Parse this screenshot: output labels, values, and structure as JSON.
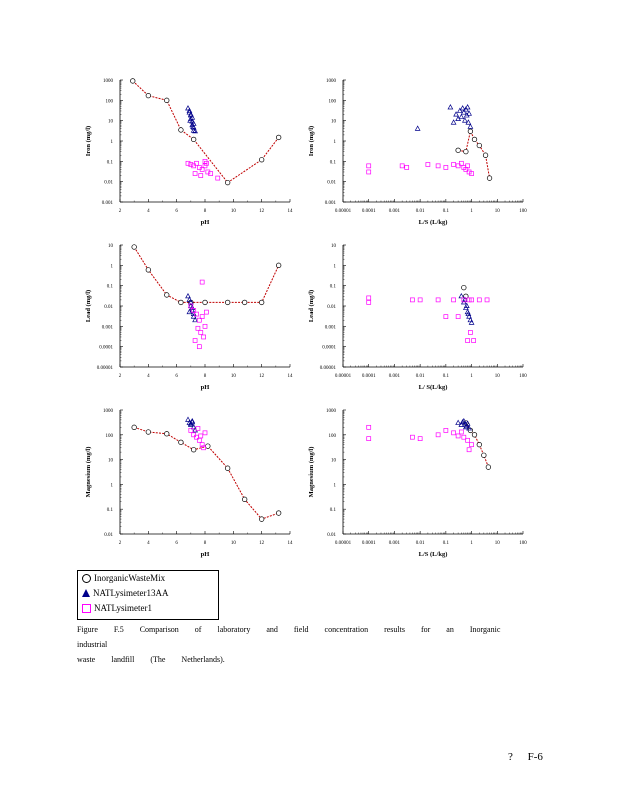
{
  "colors": {
    "lab": "#000000",
    "fit": "#c00000",
    "nat13aa": "#00008b",
    "nat1": "#ff00ff"
  },
  "legend": {
    "items": [
      {
        "label": "InorganicWasteMix",
        "marker": "circle"
      },
      {
        "label": "NATLysimeter13AA",
        "marker": "triangle"
      },
      {
        "label": "NATLysimeter1",
        "marker": "square"
      }
    ]
  },
  "caption": {
    "line1": "Figure F.5 Comparison of laboratory and field concentration results for an Inorganic industrial",
    "line2": "waste landfill (The Netherlands)."
  },
  "page_number": "? F-6",
  "chart_data": [
    {
      "id": "iron-ph",
      "type": "scatter",
      "xscale": "linear",
      "yscale": "log",
      "xlabel": "pH",
      "ylabel": "Iron (mg/l)",
      "xlim": [
        2,
        14
      ],
      "ylim": [
        0.001,
        1000
      ],
      "xticks": [
        "2",
        "4",
        "6",
        "8",
        "10",
        "12",
        "14"
      ],
      "yticks": [
        "0.001",
        "0.01",
        "0.1",
        "1",
        "10",
        "100",
        "1000"
      ],
      "series": [
        {
          "name": "InorganicWasteMix",
          "marker": "circle",
          "line": true,
          "x": [
            2.9,
            4.0,
            5.3,
            6.3,
            7.2,
            9.6,
            12.0,
            13.2
          ],
          "y": [
            900,
            170,
            100,
            3.5,
            1.2,
            0.009,
            0.12,
            1.5
          ]
        },
        {
          "name": "NATLysimeter13AA",
          "marker": "triangle",
          "x": [
            6.8,
            6.9,
            7.0,
            7.0,
            7.1,
            7.1,
            7.2,
            7.2,
            7.3,
            6.9,
            7.0,
            7.1,
            7.2,
            6.95,
            7.15
          ],
          "y": [
            40,
            25,
            18,
            12,
            9,
            6,
            4.5,
            3.2,
            3,
            30,
            20,
            14,
            7,
            10,
            5
          ]
        },
        {
          "name": "NATLysimeter1",
          "marker": "square",
          "x": [
            6.8,
            7.0,
            7.2,
            7.4,
            7.6,
            7.8,
            8.0,
            8.2,
            7.3,
            7.7,
            8.0,
            8.4,
            8.9,
            8.1
          ],
          "y": [
            0.08,
            0.07,
            0.06,
            0.08,
            0.05,
            0.04,
            0.06,
            0.03,
            0.025,
            0.02,
            0.1,
            0.025,
            0.015,
            0.08
          ]
        }
      ]
    },
    {
      "id": "iron-ls",
      "type": "scatter",
      "xscale": "log",
      "yscale": "log",
      "xlabel": "L/S (L/kg)",
      "ylabel": "Iron (mg/l)",
      "xlim": [
        1e-05,
        100
      ],
      "ylim": [
        0.001,
        1000
      ],
      "xticks": [
        "0.00001",
        "0.0001",
        "0.001",
        "0.01",
        "0.1",
        "1",
        "10",
        "100"
      ],
      "yticks": [
        "0.001",
        "0.01",
        "0.1",
        "1",
        "10",
        "100",
        "1000"
      ],
      "series": [
        {
          "name": "InorganicWasteMix",
          "marker": "circle",
          "line": true,
          "x": [
            0.3,
            0.6,
            0.9,
            1.3,
            2.0,
            3.5,
            5.0
          ],
          "y": [
            0.35,
            0.3,
            3.0,
            1.2,
            0.6,
            0.2,
            0.015
          ]
        },
        {
          "name": "NATLysimeter13AA",
          "marker": "triangle",
          "x": [
            0.008,
            0.15,
            0.2,
            0.25,
            0.3,
            0.35,
            0.4,
            0.45,
            0.5,
            0.55,
            0.6,
            0.65,
            0.7,
            0.75,
            0.8,
            0.9
          ],
          "y": [
            4,
            45,
            8,
            20,
            12,
            30,
            15,
            40,
            25,
            10,
            35,
            18,
            45,
            8,
            22,
            5
          ]
        },
        {
          "name": "NATLysimeter1",
          "marker": "square",
          "x": [
            0.0001,
            0.0001,
            0.002,
            0.003,
            0.02,
            0.05,
            0.1,
            0.2,
            0.3,
            0.5,
            0.6,
            0.8,
            1.0,
            0.4,
            0.7
          ],
          "y": [
            0.06,
            0.03,
            0.06,
            0.05,
            0.07,
            0.06,
            0.05,
            0.07,
            0.06,
            0.05,
            0.04,
            0.03,
            0.025,
            0.08,
            0.06
          ]
        }
      ]
    },
    {
      "id": "lead-ph",
      "type": "scatter",
      "xscale": "linear",
      "yscale": "log",
      "xlabel": "pH",
      "ylabel": "Lead (mg/l)",
      "xlim": [
        2,
        14
      ],
      "ylim": [
        1e-05,
        10
      ],
      "xticks": [
        "2",
        "4",
        "6",
        "8",
        "10",
        "12",
        "14"
      ],
      "yticks": [
        "0.00001",
        "0.0001",
        "0.001",
        "0.01",
        "0.1",
        "1",
        "10"
      ],
      "series": [
        {
          "name": "InorganicWasteMix",
          "marker": "circle",
          "line": true,
          "x": [
            3.0,
            4.0,
            5.3,
            6.3,
            7.0,
            8.0,
            9.6,
            10.8,
            12.0,
            13.2
          ],
          "y": [
            8,
            0.6,
            0.035,
            0.015,
            0.015,
            0.015,
            0.015,
            0.015,
            0.015,
            1.0
          ]
        },
        {
          "name": "NATLysimeter13AA",
          "marker": "triangle",
          "x": [
            6.8,
            6.9,
            7.0,
            7.1,
            7.2,
            7.3,
            7.0,
            7.1,
            7.2,
            6.9
          ],
          "y": [
            0.03,
            0.02,
            0.01,
            0.006,
            0.004,
            0.002,
            0.015,
            0.008,
            0.003,
            0.005
          ]
        },
        {
          "name": "NATLysimeter1",
          "marker": "square",
          "x": [
            7.0,
            7.2,
            7.4,
            7.6,
            7.8,
            8.0,
            7.5,
            7.7,
            7.9,
            8.1,
            7.3,
            7.6,
            7.8
          ],
          "y": [
            0.01,
            0.006,
            0.004,
            0.002,
            0.003,
            0.001,
            0.0008,
            0.0005,
            0.0003,
            0.005,
            0.0002,
            0.0001,
            0.15
          ]
        }
      ]
    },
    {
      "id": "lead-ls",
      "type": "scatter",
      "xscale": "log",
      "yscale": "log",
      "xlabel": "L/ S(L/kg)",
      "ylabel": "Lead (mg/l)",
      "xlim": [
        1e-05,
        100
      ],
      "ylim": [
        1e-05,
        10
      ],
      "xticks": [
        "0.00001",
        "0.0001",
        "0.001",
        "0.01",
        "0.1",
        "1",
        "10",
        "100"
      ],
      "yticks": [
        "0.00001",
        "0.0001",
        "0.001",
        "0.01",
        "0.1",
        "1",
        "10"
      ],
      "series": [
        {
          "name": "InorganicWasteMix",
          "marker": "circle",
          "line": false,
          "x": [
            0.5,
            0.6
          ],
          "y": [
            0.08,
            0.03
          ]
        },
        {
          "name": "NATLysimeter13AA",
          "marker": "triangle",
          "x": [
            0.4,
            0.5,
            0.6,
            0.7,
            0.8,
            0.9,
            1.0,
            0.55,
            0.75,
            0.65
          ],
          "y": [
            0.03,
            0.015,
            0.008,
            0.005,
            0.003,
            0.002,
            0.0015,
            0.02,
            0.004,
            0.01
          ]
        },
        {
          "name": "NATLysimeter1",
          "marker": "square",
          "x": [
            0.0001,
            0.0001,
            0.005,
            0.01,
            0.05,
            0.1,
            0.2,
            0.3,
            0.5,
            0.8,
            1.0,
            2.0,
            4.0,
            0.7,
            0.9,
            1.2
          ],
          "y": [
            0.025,
            0.015,
            0.02,
            0.02,
            0.02,
            0.003,
            0.02,
            0.003,
            0.02,
            0.02,
            0.02,
            0.02,
            0.02,
            0.0002,
            0.0005,
            0.0002
          ]
        }
      ]
    },
    {
      "id": "magnesium-ph",
      "type": "scatter",
      "xscale": "linear",
      "yscale": "log",
      "xlabel": "pH",
      "ylabel": "Magnesium (mg/l)",
      "xlim": [
        2,
        14
      ],
      "ylim": [
        0.01,
        1000
      ],
      "xticks": [
        "2",
        "4",
        "6",
        "8",
        "10",
        "12",
        "14"
      ],
      "yticks": [
        "0.01",
        "0.1",
        "1",
        "10",
        "100",
        "1000"
      ],
      "series": [
        {
          "name": "InorganicWasteMix",
          "marker": "circle",
          "line": true,
          "x": [
            3.0,
            4.0,
            5.3,
            6.3,
            7.2,
            8.2,
            9.6,
            10.8,
            12.0,
            13.2
          ],
          "y": [
            200,
            130,
            110,
            50,
            25,
            35,
            4.5,
            0.25,
            0.04,
            0.07
          ]
        },
        {
          "name": "NATLysimeter13AA",
          "marker": "triangle",
          "x": [
            6.8,
            6.9,
            7.0,
            7.1,
            7.2,
            7.3,
            7.0,
            7.1
          ],
          "y": [
            400,
            300,
            250,
            350,
            200,
            150,
            280,
            320
          ]
        },
        {
          "name": "NATLysimeter1",
          "marker": "square",
          "x": [
            7.0,
            7.2,
            7.4,
            7.6,
            7.8,
            8.0,
            7.5,
            7.7,
            7.9
          ],
          "y": [
            150,
            100,
            80,
            60,
            40,
            120,
            180,
            90,
            30
          ]
        }
      ]
    },
    {
      "id": "magnesium-ls",
      "type": "scatter",
      "xscale": "log",
      "yscale": "log",
      "xlabel": "L/S (L/kg)",
      "ylabel": "Magnesium (mg/l)",
      "xlim": [
        1e-05,
        100
      ],
      "ylim": [
        0.01,
        1000
      ],
      "xticks": [
        "0.00001",
        "0.0001",
        "0.001",
        "0.01",
        "0.1",
        "1",
        "10",
        "100"
      ],
      "yticks": [
        "0.01",
        "0.1",
        "1",
        "10",
        "100",
        "1000"
      ],
      "series": [
        {
          "name": "InorganicWasteMix",
          "marker": "circle",
          "line": true,
          "x": [
            0.6,
            0.9,
            1.3,
            2.0,
            3.0,
            4.5
          ],
          "y": [
            300,
            150,
            100,
            40,
            15,
            5
          ]
        },
        {
          "name": "NATLysimeter13AA",
          "marker": "triangle",
          "x": [
            0.3,
            0.4,
            0.5,
            0.6,
            0.7,
            0.8,
            0.45,
            0.55,
            0.65
          ],
          "y": [
            300,
            250,
            350,
            200,
            280,
            180,
            320,
            260,
            220
          ]
        },
        {
          "name": "NATLysimeter1",
          "marker": "square",
          "x": [
            0.0001,
            0.0001,
            0.005,
            0.01,
            0.05,
            0.1,
            0.2,
            0.3,
            0.5,
            0.7,
            1.0,
            0.4,
            0.8
          ],
          "y": [
            200,
            70,
            80,
            70,
            100,
            150,
            120,
            90,
            80,
            60,
            40,
            130,
            25
          ]
        }
      ]
    }
  ]
}
